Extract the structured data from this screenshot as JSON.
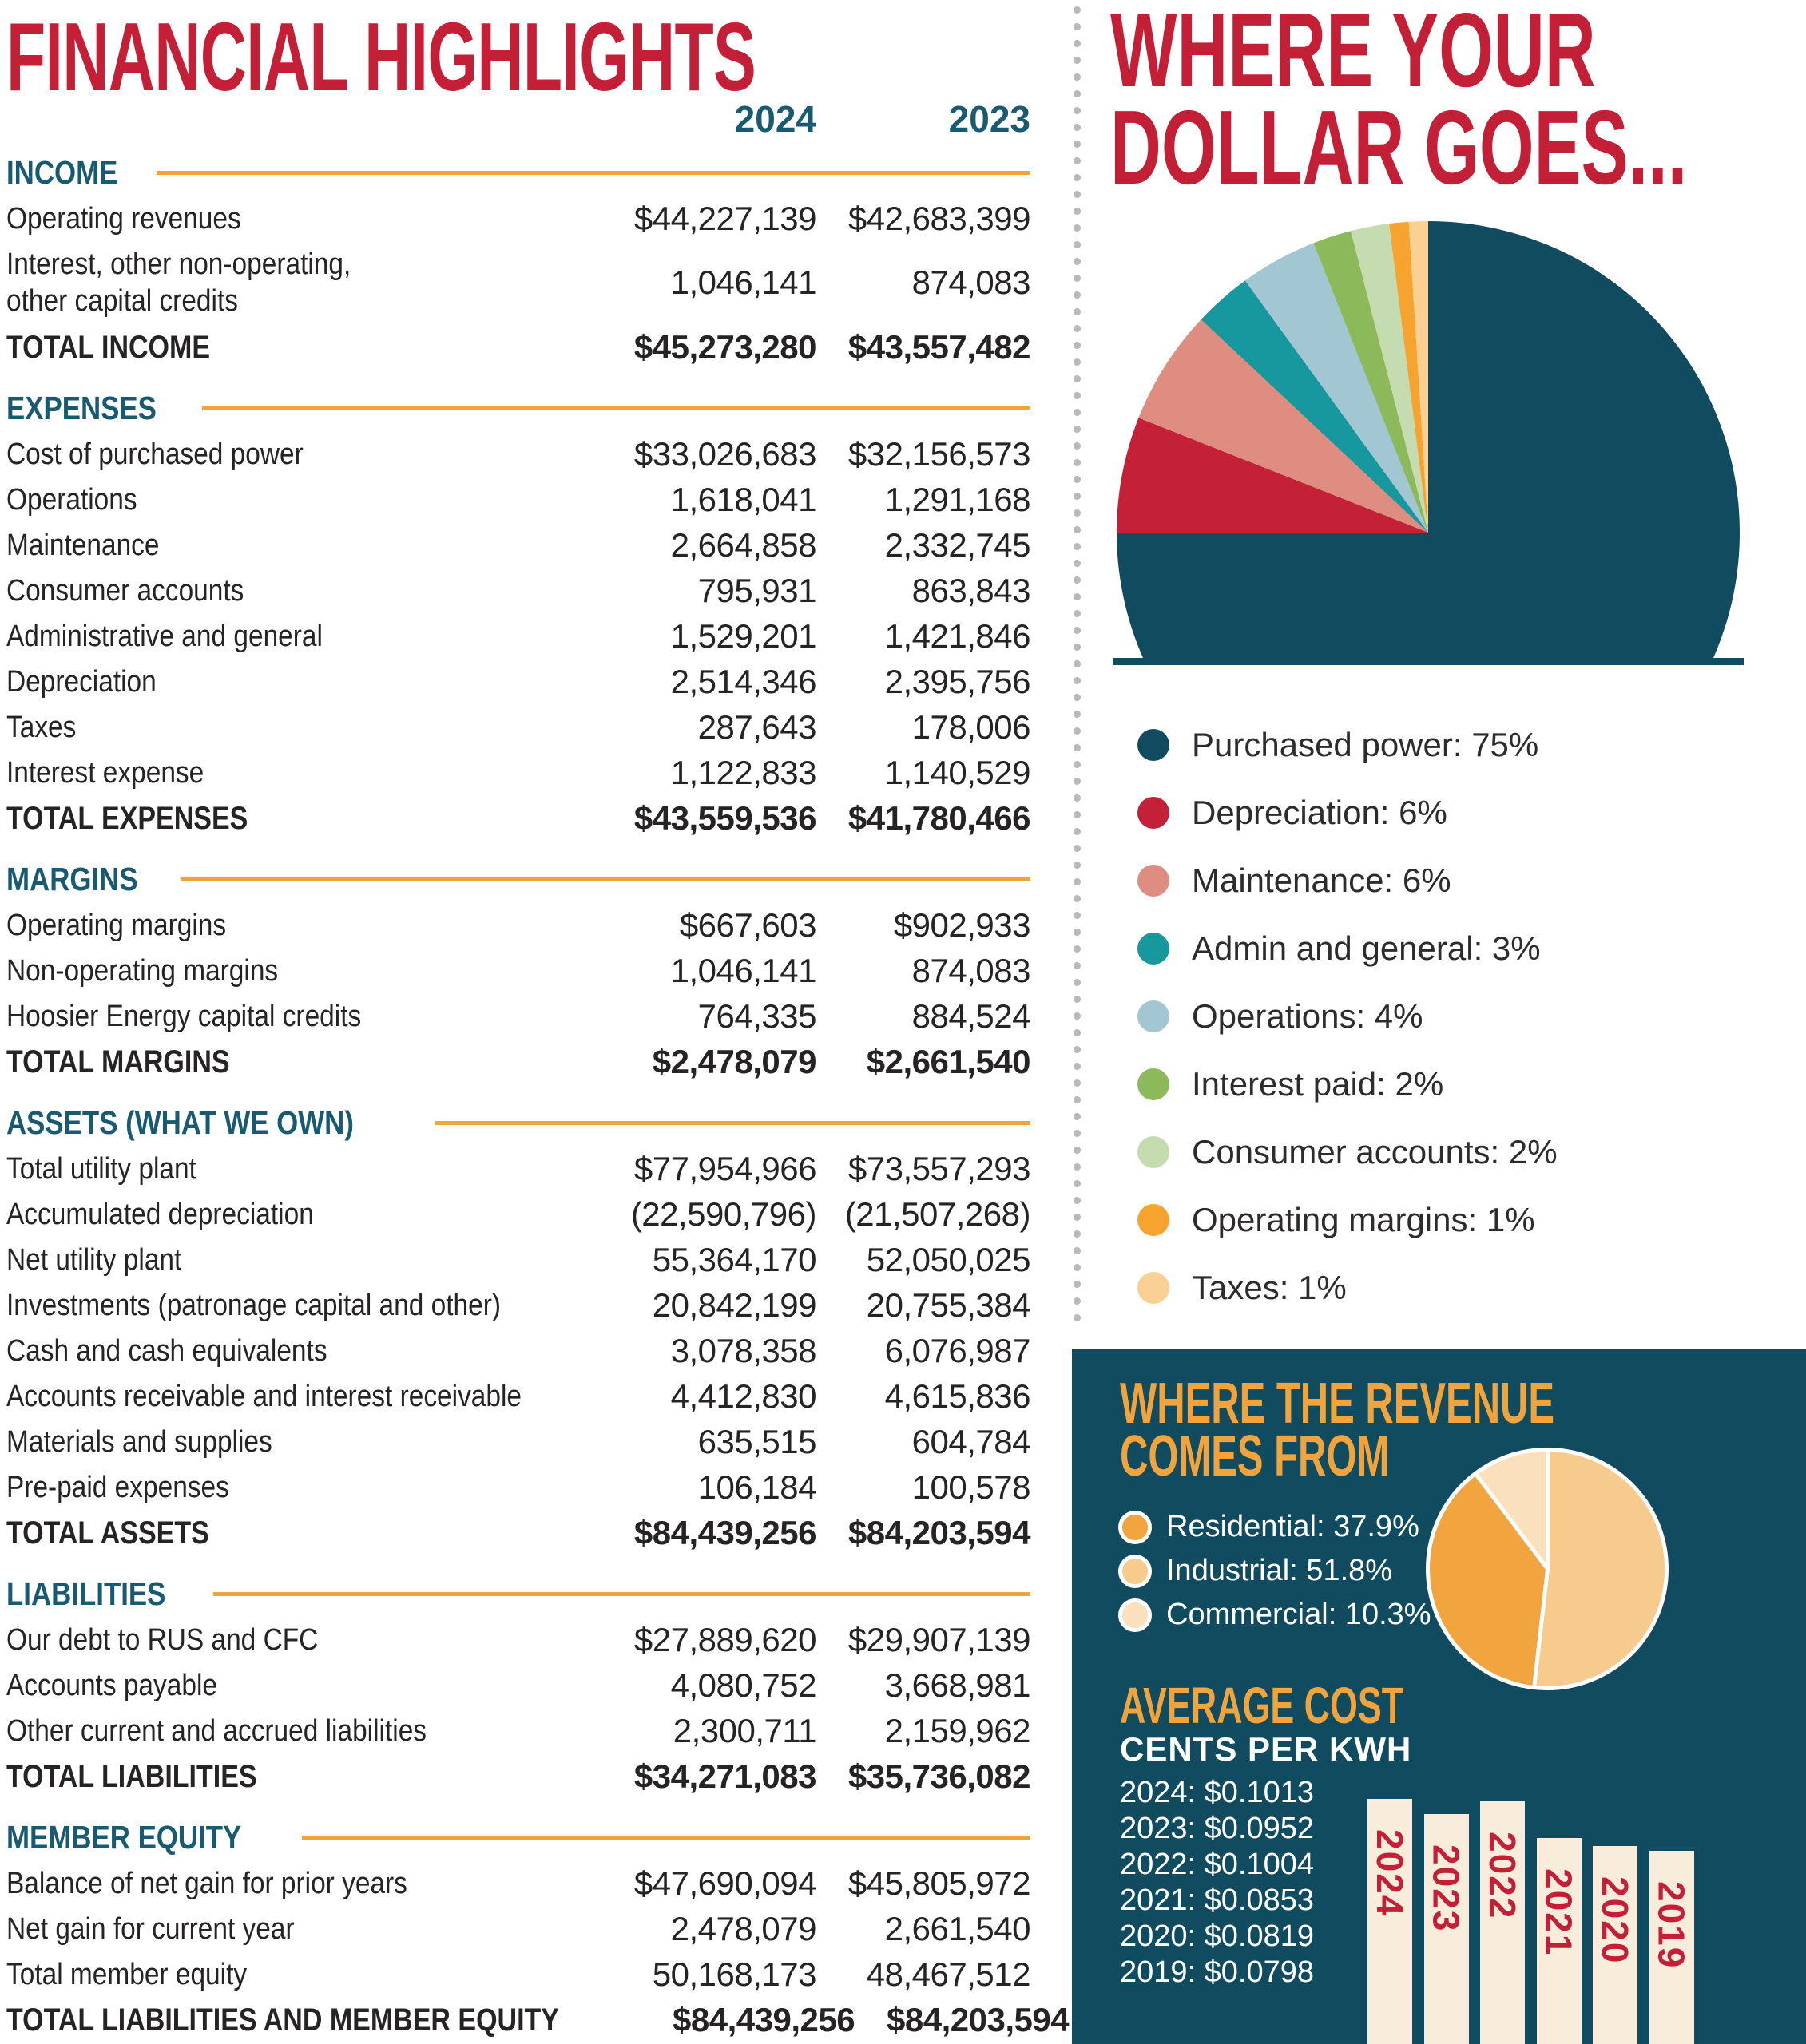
{
  "title": "FINANCIAL HIGHLIGHTS",
  "colors": {
    "accent_red": "#C32038",
    "accent_teal": "#175A72",
    "accent_orange": "#F2A43C",
    "navy": "#114B60",
    "ink": "#262324",
    "bar_cream": "#F8EDDA",
    "divider_gray": "#b9b9b9"
  },
  "financial": {
    "col_headers": [
      "2024",
      "2023"
    ],
    "rows": [
      {
        "type": "section",
        "label": "INCOME"
      },
      {
        "type": "item",
        "label": "Operating revenues",
        "v1": "$44,227,139",
        "v2": "$42,683,399"
      },
      {
        "type": "item2",
        "label": "Interest, other non-operating,",
        "label2": "other capital credits",
        "v1": "1,046,141",
        "v2": "874,083"
      },
      {
        "type": "total",
        "label": "TOTAL INCOME",
        "v1": "$45,273,280",
        "v2": "$43,557,482"
      },
      {
        "type": "section",
        "label": "EXPENSES"
      },
      {
        "type": "item",
        "label": "Cost of purchased power",
        "v1": "$33,026,683",
        "v2": "$32,156,573"
      },
      {
        "type": "item",
        "label": "Operations",
        "v1": "1,618,041",
        "v2": "1,291,168"
      },
      {
        "type": "item",
        "label": "Maintenance",
        "v1": "2,664,858",
        "v2": "2,332,745"
      },
      {
        "type": "item",
        "label": "Consumer accounts",
        "v1": "795,931",
        "v2": "863,843"
      },
      {
        "type": "item",
        "label": "Administrative and general",
        "v1": "1,529,201",
        "v2": "1,421,846"
      },
      {
        "type": "item",
        "label": "Depreciation",
        "v1": "2,514,346",
        "v2": "2,395,756"
      },
      {
        "type": "item",
        "label": "Taxes",
        "v1": "287,643",
        "v2": "178,006"
      },
      {
        "type": "item",
        "label": "Interest expense",
        "v1": "1,122,833",
        "v2": "1,140,529"
      },
      {
        "type": "total",
        "label": "TOTAL EXPENSES",
        "v1": "$43,559,536",
        "v2": "$41,780,466"
      },
      {
        "type": "section",
        "label": "MARGINS"
      },
      {
        "type": "item",
        "label": "Operating margins",
        "v1": "$667,603",
        "v2": "$902,933"
      },
      {
        "type": "item",
        "label": "Non-operating margins",
        "v1": "1,046,141",
        "v2": "874,083"
      },
      {
        "type": "item",
        "label": "Hoosier Energy capital credits",
        "v1": "764,335",
        "v2": "884,524"
      },
      {
        "type": "total",
        "label": "TOTAL MARGINS",
        "v1": "$2,478,079",
        "v2": "$2,661,540"
      },
      {
        "type": "section",
        "label": "ASSETS (WHAT WE OWN)"
      },
      {
        "type": "item",
        "label": "Total utility plant",
        "v1": "$77,954,966",
        "v2": "$73,557,293"
      },
      {
        "type": "item",
        "label": "Accumulated depreciation",
        "v1": "(22,590,796)",
        "v2": "(21,507,268)"
      },
      {
        "type": "item",
        "label": "Net utility plant",
        "v1": "55,364,170",
        "v2": "52,050,025"
      },
      {
        "type": "item",
        "label": "Investments (patronage capital and other)",
        "v1": "20,842,199",
        "v2": "20,755,384"
      },
      {
        "type": "item",
        "label": "Cash and cash equivalents",
        "v1": "3,078,358",
        "v2": "6,076,987"
      },
      {
        "type": "item",
        "label": "Accounts receivable and interest receivable",
        "v1": "4,412,830",
        "v2": "4,615,836"
      },
      {
        "type": "item",
        "label": "Materials and supplies",
        "v1": "635,515",
        "v2": "604,784"
      },
      {
        "type": "item",
        "label": "Pre-paid expenses",
        "v1": "106,184",
        "v2": "100,578"
      },
      {
        "type": "total",
        "label": "TOTAL ASSETS",
        "v1": "$84,439,256",
        "v2": "$84,203,594"
      },
      {
        "type": "section",
        "label": "LIABILITIES"
      },
      {
        "type": "item",
        "label": "Our debt to RUS and CFC",
        "v1": "$27,889,620",
        "v2": "$29,907,139"
      },
      {
        "type": "item",
        "label": "Accounts payable",
        "v1": "4,080,752",
        "v2": "3,668,981"
      },
      {
        "type": "item",
        "label": "Other current and accrued liabilities",
        "v1": "2,300,711",
        "v2": "2,159,962"
      },
      {
        "type": "total",
        "label": "TOTAL LIABILITIES",
        "v1": "$34,271,083",
        "v2": "$35,736,082"
      },
      {
        "type": "section",
        "label": "MEMBER EQUITY"
      },
      {
        "type": "item",
        "label": "Balance of net gain for prior years",
        "v1": "$47,690,094",
        "v2": "$45,805,972"
      },
      {
        "type": "item",
        "label": "Net gain for current year",
        "v1": "2,478,079",
        "v2": "2,661,540"
      },
      {
        "type": "item",
        "label": "Total member equity",
        "v1": "50,168,173",
        "v2": "48,467,512"
      },
      {
        "type": "total",
        "label": "TOTAL LIABILITIES AND MEMBER EQUITY",
        "v1": "$84,439,256",
        "v2": "$84,203,594"
      }
    ]
  },
  "dollar": {
    "title_line1": "WHERE YOUR",
    "title_line2": "DOLLAR GOES..."
  },
  "revenue": {
    "title_line1": "WHERE THE REVENUE",
    "title_line2": "COMES FROM",
    "draw_order": [
      1,
      0,
      2
    ]
  },
  "avg": {
    "title": "AVERAGE COST",
    "subtitle": "CENTS PER KWH"
  },
  "chart_data": [
    {
      "type": "pie",
      "title": "WHERE YOUR DOLLAR GOES...",
      "labels": [
        "Purchased power",
        "Depreciation",
        "Maintenance",
        "Admin and general",
        "Operations",
        "Interest paid",
        "Consumer accounts",
        "Operating margins",
        "Taxes"
      ],
      "values": [
        75,
        6,
        6,
        3,
        4,
        2,
        2,
        1,
        1
      ],
      "unit": "%",
      "colors": [
        "#114B60",
        "#C42038",
        "#DE8D80",
        "#17989E",
        "#A3C7D2",
        "#8CBA5B",
        "#C5DCB0",
        "#F6A42F",
        "#FBD095"
      ],
      "legend_position": "below"
    },
    {
      "type": "pie",
      "title": "WHERE THE REVENUE COMES FROM",
      "labels": [
        "Residential",
        "Industrial",
        "Commercial"
      ],
      "values": [
        37.9,
        51.8,
        10.3
      ],
      "unit": "%",
      "colors": [
        "#F2A43E",
        "#F7CA8E",
        "#FAE0BC"
      ],
      "legend_position": "left"
    },
    {
      "type": "bar",
      "title": "AVERAGE COST",
      "ylabel": "CENTS PER KWH",
      "categories": [
        "2024",
        "2023",
        "2022",
        "2021",
        "2020",
        "2019"
      ],
      "values": [
        0.1013,
        0.0952,
        0.1004,
        0.0853,
        0.0819,
        0.0798
      ],
      "prices": [
        "$0.1013",
        "$0.0952",
        "$0.1004",
        "$0.0853",
        "$0.0819",
        "$0.0798"
      ],
      "unit": "$/kWh"
    }
  ]
}
